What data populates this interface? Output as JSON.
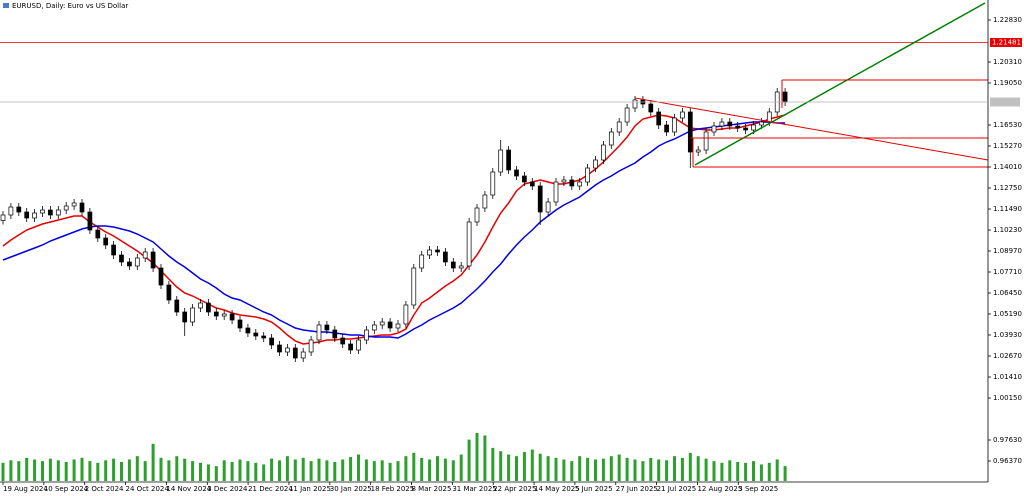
{
  "chart_data": {
    "type": "candlestick",
    "title": "EURUSD, Daily: Euro vs US Dollar",
    "up_color": "#ffffff",
    "down_color": "#000000",
    "edge_color": "#000000",
    "volume_color": "#2ca02c",
    "ylim": [
      0.9511,
      1.2403
    ],
    "yticks": [
      {
        "value": 1.2283,
        "label": "1.22830"
      },
      {
        "value": 1.2031,
        "label": "1.20310"
      },
      {
        "value": 1.1905,
        "label": "1.19050"
      },
      {
        "value": 1.1653,
        "label": "1.16530"
      },
      {
        "value": 1.1527,
        "label": "1.15270"
      },
      {
        "value": 1.1401,
        "label": "1.14010"
      },
      {
        "value": 1.1275,
        "label": "1.12750"
      },
      {
        "value": 1.1149,
        "label": "1.11490"
      },
      {
        "value": 1.1023,
        "label": "1.10230"
      },
      {
        "value": 1.0897,
        "label": "1.08970"
      },
      {
        "value": 1.0771,
        "label": "1.07710"
      },
      {
        "value": 1.0645,
        "label": "1.06450"
      },
      {
        "value": 1.0519,
        "label": "1.05190"
      },
      {
        "value": 1.0393,
        "label": "1.03930"
      },
      {
        "value": 1.0267,
        "label": "1.02670"
      },
      {
        "value": 1.0141,
        "label": "1.01410"
      },
      {
        "value": 1.0015,
        "label": "1.00150"
      },
      {
        "value": 0.9763,
        "label": "0.97630"
      },
      {
        "value": 0.9637,
        "label": "0.96370"
      }
    ],
    "level": {
      "value": 1.21481,
      "label": "1.21481",
      "color": "#e60000"
    },
    "x_labels": [
      "19 Aug 2024",
      "10 Sep 2024",
      "2 Oct 2024",
      "24 Oct 2024",
      "14 Nov 2024",
      "3 Dec 2024",
      "21 Dec 2024",
      "11 Jan 2025",
      "30 Jan 2025",
      "18 Feb 2025",
      "8 Mar 2025",
      "31 Mar 2025",
      "22 Apr 2025",
      "14 May 2025",
      "5 Jun 2025",
      "27 Jun 2025",
      "21 Jul 2025",
      "12 Aug 2025",
      "3 Sep 2025"
    ],
    "open": [
      1.108,
      1.1113,
      1.1161,
      1.1131,
      1.1095,
      1.1125,
      1.1143,
      1.1113,
      1.1143,
      1.1167,
      1.1185,
      1.1131,
      1.1023,
      1.0975,
      1.0933,
      1.0873,
      1.0831,
      1.0807,
      1.0855,
      1.0891,
      1.0795,
      1.0693,
      1.0603,
      1.0531,
      1.0471,
      1.0555,
      1.0585,
      1.0531,
      1.0507,
      1.0519,
      1.0483,
      1.0435,
      1.0405,
      1.0387,
      1.0375,
      1.0333,
      1.0291,
      1.0315,
      1.0255,
      1.0291,
      1.0363,
      1.0453,
      1.0423,
      1.0375,
      1.0339,
      1.0303,
      1.0363,
      1.0423,
      1.0453,
      1.0471,
      1.0435,
      1.0459,
      1.0573,
      1.0795,
      1.0873,
      1.0903,
      1.0891,
      1.0831,
      1.0795,
      1.0807,
      1.1071,
      1.1155,
      1.1233,
      1.1371,
      1.1503,
      1.1383,
      1.1347,
      1.1311,
      1.1287,
      1.1131,
      1.1191,
      1.1311,
      1.1323,
      1.1287,
      1.1311,
      1.1395,
      1.1443,
      1.1533,
      1.1611,
      1.1671,
      1.1755,
      1.1803,
      1.1779,
      1.1731,
      1.1653,
      1.1611,
      1.1695,
      1.1731,
      1.1491,
      1.1503,
      1.1611,
      1.1647,
      1.1671,
      1.1647,
      1.1635,
      1.1623,
      1.1653,
      1.1671,
      1.1731,
      1.1851
    ],
    "high": [
      1.1137,
      1.1185,
      1.1185,
      1.1155,
      1.1149,
      1.1167,
      1.1167,
      1.1167,
      1.1191,
      1.1209,
      1.1209,
      1.1155,
      1.1047,
      1.0999,
      1.0957,
      1.0897,
      1.0855,
      1.0879,
      1.0915,
      1.0915,
      1.0819,
      1.0717,
      1.0627,
      1.0555,
      1.0579,
      1.0609,
      1.0609,
      1.0555,
      1.0543,
      1.0543,
      1.0507,
      1.0459,
      1.0429,
      1.0411,
      1.0399,
      1.0357,
      1.0339,
      1.0339,
      1.0315,
      1.0387,
      1.0477,
      1.0477,
      1.0447,
      1.0399,
      1.0363,
      1.0387,
      1.0447,
      1.0477,
      1.0495,
      1.0495,
      1.0483,
      1.0597,
      1.0819,
      1.0897,
      1.0927,
      1.0927,
      1.0915,
      1.0855,
      1.0831,
      1.1095,
      1.1179,
      1.1257,
      1.1395,
      1.1563,
      1.1527,
      1.1407,
      1.1371,
      1.1335,
      1.1311,
      1.1215,
      1.1335,
      1.1347,
      1.1347,
      1.1335,
      1.1419,
      1.1467,
      1.1557,
      1.1635,
      1.1695,
      1.1779,
      1.1827,
      1.1827,
      1.1803,
      1.1755,
      1.1677,
      1.1719,
      1.1755,
      1.1755,
      1.1527,
      1.1635,
      1.1671,
      1.1695,
      1.1695,
      1.1671,
      1.1659,
      1.1677,
      1.1695,
      1.1755,
      1.1875,
      1.1875
    ],
    "low": [
      1.1056,
      1.1089,
      1.1107,
      1.1071,
      1.1071,
      1.1101,
      1.1089,
      1.1089,
      1.1119,
      1.1143,
      1.1107,
      1.0999,
      1.0951,
      1.0909,
      1.0849,
      1.0807,
      1.0783,
      1.0783,
      1.0831,
      1.0771,
      1.0669,
      1.0579,
      1.0507,
      1.0387,
      1.0447,
      1.0531,
      1.0507,
      1.0483,
      1.0483,
      1.0459,
      1.0411,
      1.0381,
      1.0363,
      1.0351,
      1.0309,
      1.0267,
      1.0267,
      1.0231,
      1.0231,
      1.0267,
      1.0339,
      1.0399,
      1.0351,
      1.0315,
      1.0279,
      1.0279,
      1.0339,
      1.0399,
      1.0429,
      1.0411,
      1.0411,
      1.0435,
      1.0549,
      1.0771,
      1.0849,
      1.0867,
      1.0807,
      1.0771,
      1.0771,
      1.0783,
      1.1047,
      1.1131,
      1.1209,
      1.1347,
      1.1359,
      1.1323,
      1.1287,
      1.1263,
      1.1053,
      1.1107,
      1.1167,
      1.1287,
      1.1263,
      1.1263,
      1.1287,
      1.1371,
      1.1419,
      1.1509,
      1.1587,
      1.1647,
      1.1731,
      1.1755,
      1.1707,
      1.1629,
      1.1587,
      1.1587,
      1.1671,
      1.1395,
      1.1467,
      1.1479,
      1.1587,
      1.1623,
      1.1623,
      1.1611,
      1.1599,
      1.1599,
      1.1629,
      1.1647,
      1.1707,
      1.1767
    ],
    "close": [
      1.1113,
      1.1161,
      1.1131,
      1.1095,
      1.1125,
      1.1143,
      1.1113,
      1.1143,
      1.1167,
      1.1185,
      1.1131,
      1.1023,
      1.0975,
      1.0933,
      1.0873,
      1.0831,
      1.0807,
      1.0855,
      1.0891,
      1.0795,
      1.0693,
      1.0603,
      1.0531,
      1.0471,
      1.0555,
      1.0585,
      1.0531,
      1.0507,
      1.0519,
      1.0483,
      1.0435,
      1.0405,
      1.0387,
      1.0375,
      1.0333,
      1.0291,
      1.0315,
      1.0255,
      1.0291,
      1.0363,
      1.0453,
      1.0423,
      1.0375,
      1.0339,
      1.0303,
      1.0363,
      1.0423,
      1.0453,
      1.0471,
      1.0435,
      1.0459,
      1.0573,
      1.0795,
      1.0873,
      1.0903,
      1.0891,
      1.0831,
      1.0795,
      1.0807,
      1.1071,
      1.1155,
      1.1233,
      1.1371,
      1.1503,
      1.1383,
      1.1347,
      1.1311,
      1.1287,
      1.1131,
      1.1191,
      1.1311,
      1.1323,
      1.1287,
      1.1311,
      1.1395,
      1.1443,
      1.1533,
      1.1611,
      1.1671,
      1.1755,
      1.1803,
      1.1779,
      1.1731,
      1.1653,
      1.1611,
      1.1695,
      1.1731,
      1.1491,
      1.1503,
      1.1611,
      1.1647,
      1.1671,
      1.1647,
      1.1635,
      1.1623,
      1.1653,
      1.1671,
      1.1731,
      1.1851,
      1.1791
    ],
    "series": [
      {
        "color": "#e60000",
        "values": [
          1.0927,
          1.0963,
          1.0993,
          1.1023,
          1.1041,
          1.1059,
          1.1071,
          1.1083,
          1.1095,
          1.1107,
          1.1107,
          1.1071,
          1.1041,
          1.1011,
          1.0987,
          1.0957,
          1.0927,
          1.0897,
          1.0861,
          1.0825,
          1.0777,
          1.0729,
          1.0681,
          1.0645,
          1.0627,
          1.0603,
          1.0579,
          1.0555,
          1.0543,
          1.0525,
          1.0513,
          1.0507,
          1.0501,
          1.0489,
          1.0471,
          1.0435,
          1.0393,
          1.0357,
          1.0339,
          1.0345,
          1.0351,
          1.0363,
          1.0363,
          1.0369,
          1.0369,
          1.0375,
          1.0381,
          1.0387,
          1.0393,
          1.0393,
          1.0405,
          1.0429,
          1.0513,
          1.0585,
          1.0615,
          1.0651,
          1.0687,
          1.0717,
          1.0753,
          1.0813,
          1.0873,
          1.0951,
          1.1041,
          1.1125,
          1.1185,
          1.1257,
          1.1299,
          1.1311,
          1.1323,
          1.1311,
          1.1299,
          1.1299,
          1.1311,
          1.1323,
          1.1353,
          1.1389,
          1.1431,
          1.1479,
          1.1527,
          1.1581,
          1.1647,
          1.1689,
          1.1701,
          1.1713,
          1.1707,
          1.1695,
          1.1665,
          1.1635,
          1.1629,
          1.1623,
          1.1623,
          1.1629,
          1.1635,
          1.1635,
          1.1647,
          1.1659,
          1.1671,
          1.1689,
          1.1701,
          1.1713
        ]
      },
      {
        "color": "#0000e6",
        "values": [
          1.0843,
          1.0861,
          1.0879,
          1.0897,
          1.0915,
          1.0933,
          1.0957,
          1.0975,
          1.0993,
          1.1011,
          1.1029,
          1.1041,
          1.1047,
          1.1047,
          1.1041,
          1.1029,
          1.1017,
          1.0999,
          1.0975,
          1.0951,
          1.0909,
          1.0867,
          1.0831,
          1.0801,
          1.0765,
          1.0729,
          1.0705,
          1.0675,
          1.0639,
          1.0615,
          1.0603,
          1.0579,
          1.0555,
          1.0531,
          1.0513,
          1.0483,
          1.0459,
          1.0435,
          1.0423,
          1.0417,
          1.0411,
          1.0411,
          1.0405,
          1.0399,
          1.0393,
          1.0393,
          1.0387,
          1.0381,
          1.0381,
          1.0381,
          1.0375,
          1.0399,
          1.0429,
          1.0453,
          1.0483,
          1.0507,
          1.0531,
          1.0555,
          1.0585,
          1.0627,
          1.0669,
          1.0717,
          1.0771,
          1.0819,
          1.0879,
          1.0933,
          1.0981,
          1.1023,
          1.1071,
          1.1107,
          1.1143,
          1.1173,
          1.1197,
          1.1221,
          1.1257,
          1.1293,
          1.1323,
          1.1347,
          1.1377,
          1.1401,
          1.1425,
          1.1461,
          1.1491,
          1.1527,
          1.1551,
          1.1569,
          1.1593,
          1.1617,
          1.1629,
          1.1635,
          1.1641,
          1.1647,
          1.1653,
          1.1659,
          1.1665,
          1.1671,
          1.1671,
          1.1671,
          1.1665,
          1.1665
        ]
      }
    ],
    "volume": [
      22,
      25,
      24,
      28,
      26,
      24,
      27,
      25,
      23,
      26,
      28,
      24,
      22,
      25,
      27,
      23,
      26,
      30,
      24,
      45,
      28,
      25,
      30,
      27,
      24,
      22,
      20,
      18,
      25,
      23,
      26,
      24,
      22,
      20,
      27,
      25,
      30,
      26,
      28,
      24,
      27,
      25,
      23,
      26,
      29,
      32,
      26,
      24,
      25,
      22,
      24,
      30,
      34,
      28,
      26,
      30,
      27,
      25,
      32,
      50,
      58,
      55,
      40,
      36,
      32,
      30,
      35,
      38,
      33,
      30,
      28,
      26,
      24,
      30,
      28,
      26,
      27,
      30,
      32,
      28,
      26,
      24,
      28,
      26,
      25,
      30,
      28,
      34,
      30,
      27,
      24,
      22,
      25,
      23,
      22,
      24,
      20,
      22,
      26,
      18
    ]
  }
}
